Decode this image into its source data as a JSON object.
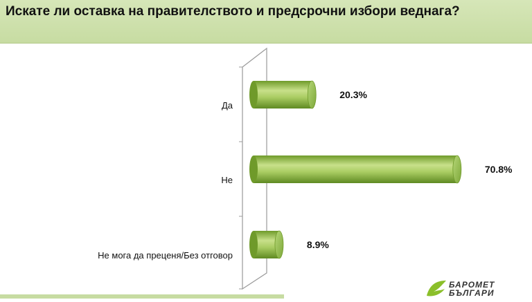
{
  "title": "Искате ли оставка на правителството и предсрочни избори веднага?",
  "chart_data": {
    "type": "bar",
    "orientation": "horizontal",
    "categories": [
      "Да",
      "Не",
      "Не мога да преценя/Без отговор"
    ],
    "values": [
      20.3,
      70.8,
      8.9
    ],
    "value_labels": [
      "20.3%",
      "70.8%",
      "8.9%"
    ],
    "unit": "%",
    "title": "Искате ли оставка на правителството и предсрочни избори веднага?",
    "xlabel": "",
    "ylabel": "",
    "xlim": [
      0,
      75
    ],
    "grid": false,
    "legend": "none",
    "bar_style": "3d-cylinder"
  },
  "logo": {
    "name": "barometer-bulgaria-logo",
    "line1": "БАРОМЕТ",
    "line2": "БЪЛГАРИ"
  },
  "colors": {
    "title_bg": "#c7dca2",
    "bar_light": "#c8e08a",
    "bar_dark": "#6f9a2a",
    "bar_end": "#9cc45a",
    "logo_green": "#8bbf2a"
  }
}
